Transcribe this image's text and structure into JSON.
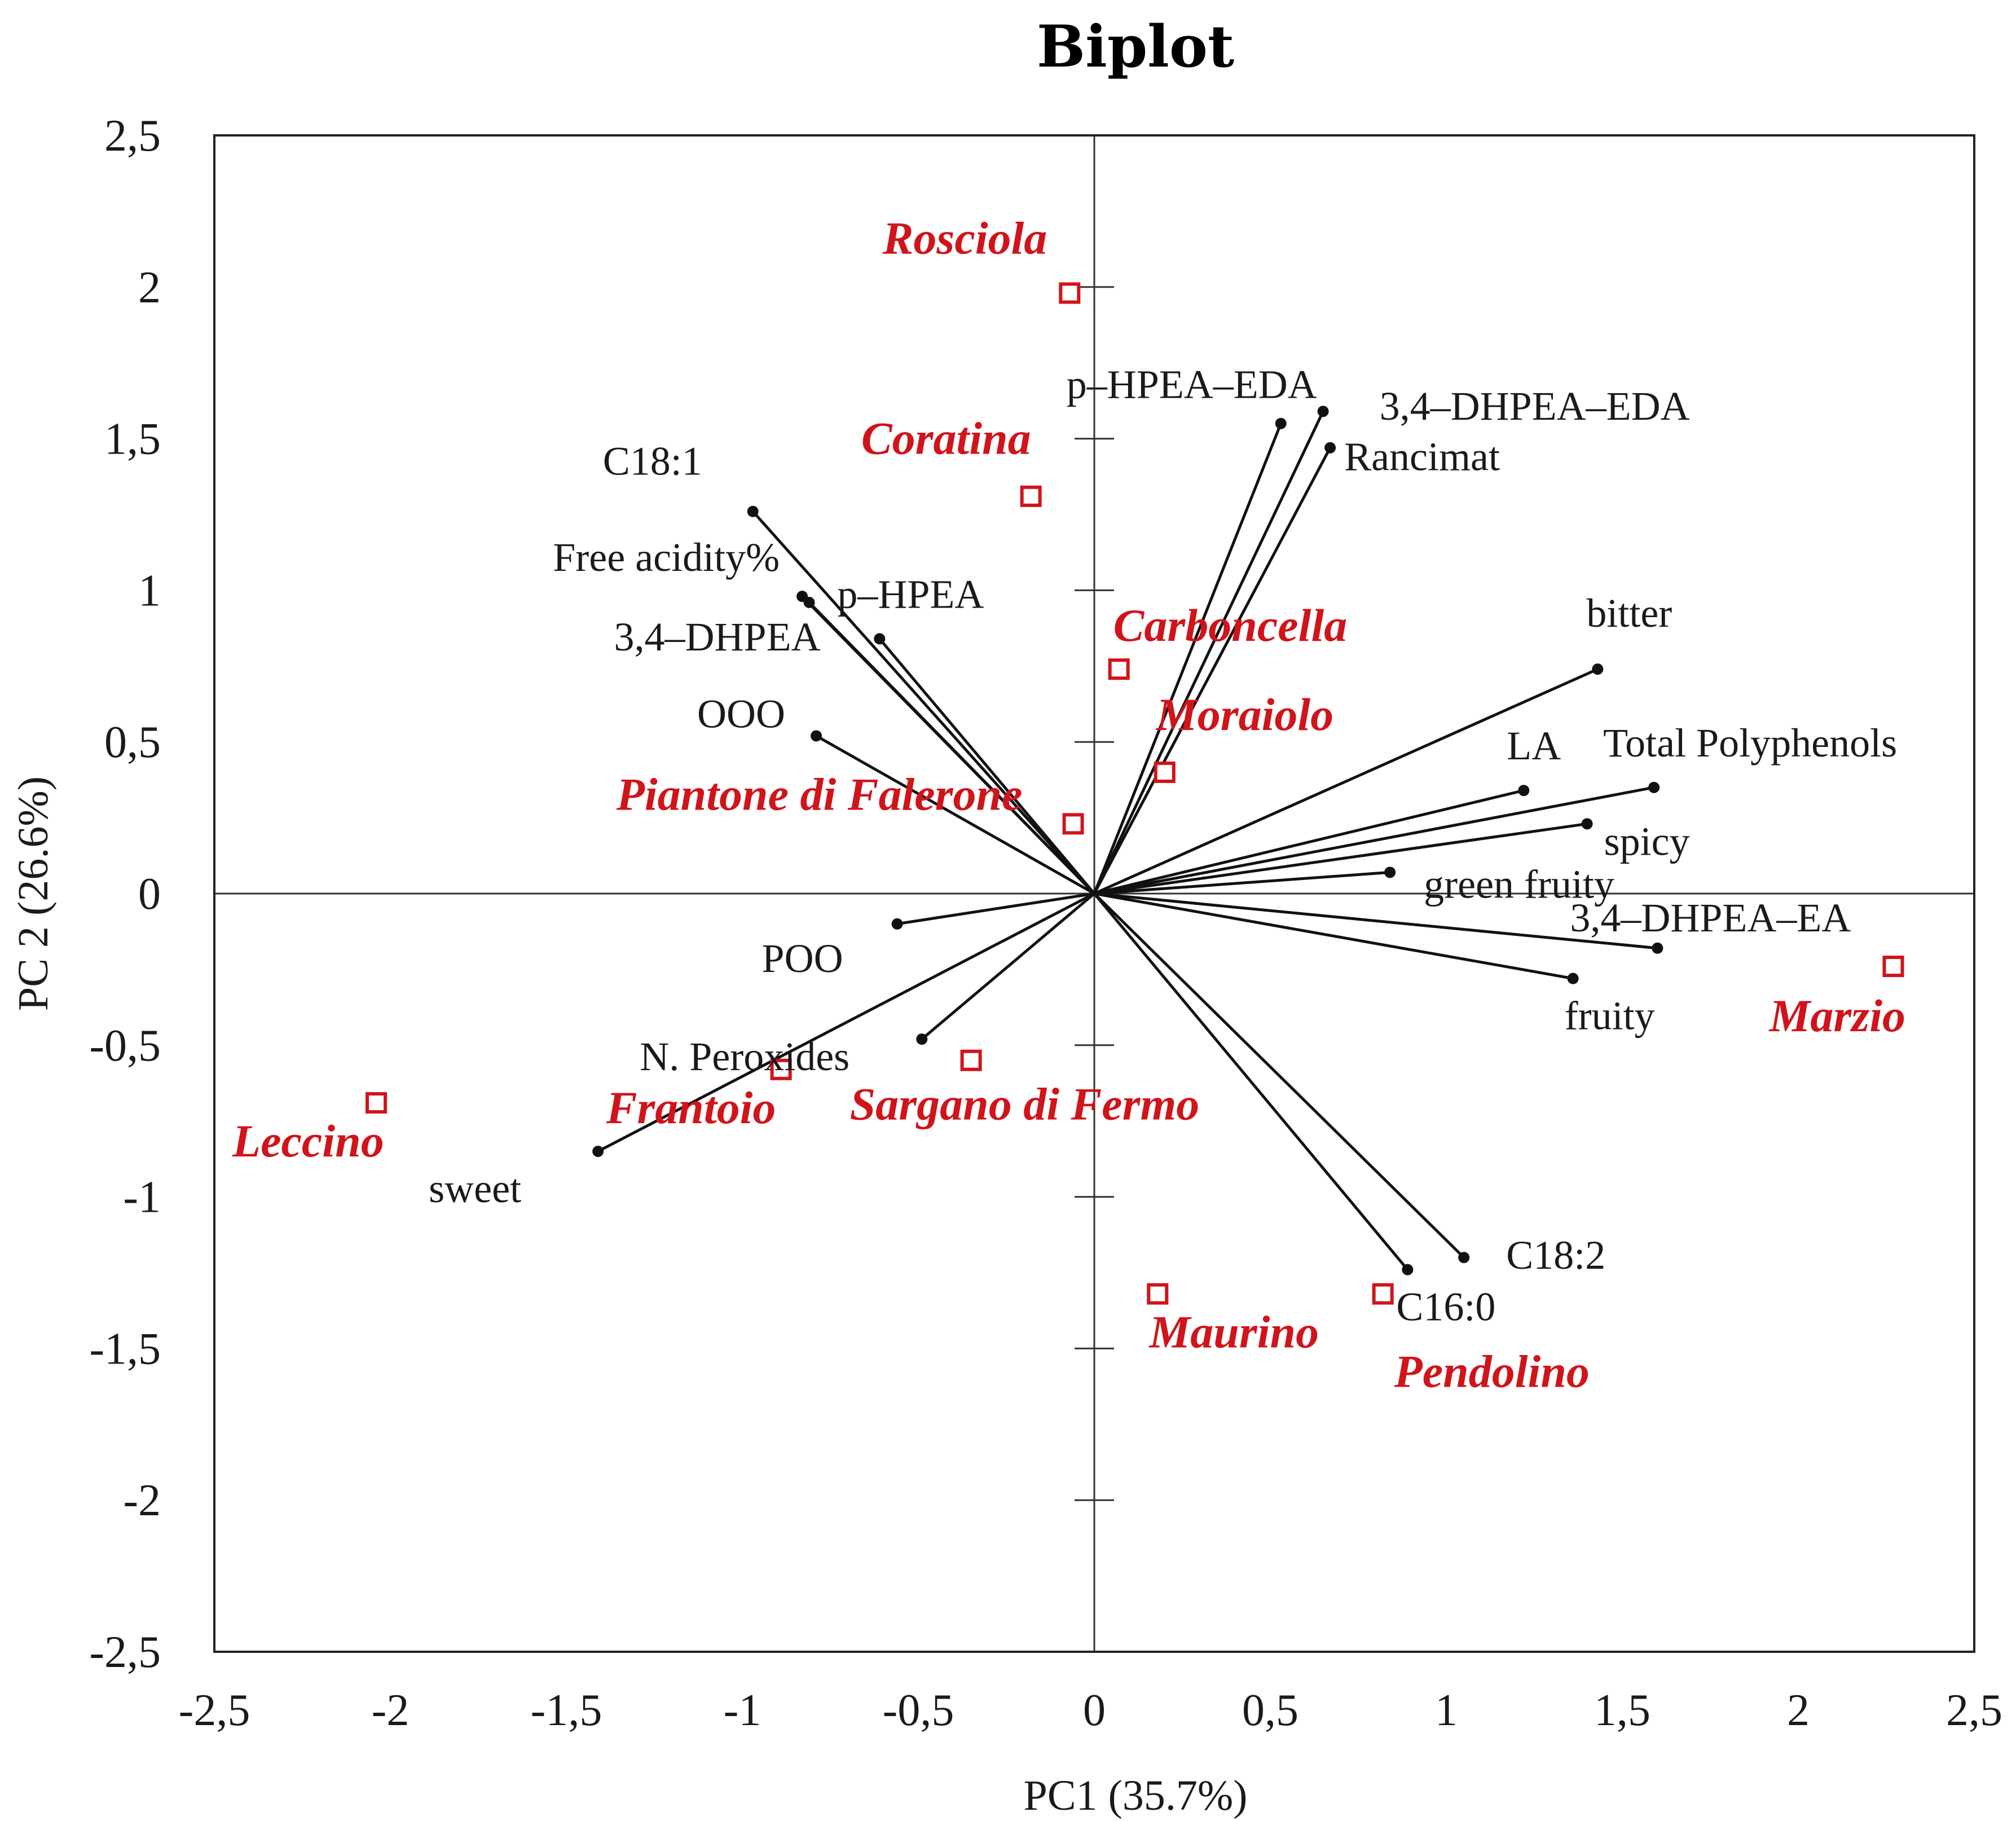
{
  "chart_data": {
    "type": "scatter",
    "subtype": "pca-biplot",
    "title": "Biplot",
    "xlabel": "PC1 (35.7%)",
    "ylabel": "PC 2 (26.6%)",
    "xlim": [
      -2.5,
      2.5
    ],
    "ylim": [
      -2.5,
      2.5
    ],
    "x_ticks": [
      {
        "value": -2.5,
        "label": "-2,5"
      },
      {
        "value": -2,
        "label": "-2"
      },
      {
        "value": -1.5,
        "label": "-1,5"
      },
      {
        "value": -1,
        "label": "-1"
      },
      {
        "value": -0.5,
        "label": "-0,5"
      },
      {
        "value": 0,
        "label": "0"
      },
      {
        "value": 0.5,
        "label": "0,5"
      },
      {
        "value": 1,
        "label": "1"
      },
      {
        "value": 1.5,
        "label": "1,5"
      },
      {
        "value": 2,
        "label": "2"
      },
      {
        "value": 2.5,
        "label": "2,5"
      }
    ],
    "y_ticks": [
      {
        "value": 2.5,
        "label": "2,5"
      },
      {
        "value": 2,
        "label": "2"
      },
      {
        "value": 1.5,
        "label": "1,5"
      },
      {
        "value": 1,
        "label": "1"
      },
      {
        "value": 0.5,
        "label": "0,5"
      },
      {
        "value": 0,
        "label": "0"
      },
      {
        "value": -0.5,
        "label": "-0,5"
      },
      {
        "value": -1,
        "label": "-1"
      },
      {
        "value": -1.5,
        "label": "-1,5"
      },
      {
        "value": -2,
        "label": "-2"
      },
      {
        "value": -2.5,
        "label": "-2,5"
      }
    ],
    "grid": false,
    "variables": [
      {
        "name": "C18:1",
        "x": -0.97,
        "y": 1.26
      },
      {
        "name": "Free acidity%",
        "x": -0.83,
        "y": 0.98
      },
      {
        "name": "3,4–DHPEA",
        "x": -0.81,
        "y": 0.96
      },
      {
        "name": "p–HPEA",
        "x": -0.61,
        "y": 0.84
      },
      {
        "name": "OOO",
        "x": -0.79,
        "y": 0.52
      },
      {
        "name": "POO",
        "x": -0.56,
        "y": -0.1
      },
      {
        "name": "N. Peroxides",
        "x": -0.49,
        "y": -0.48
      },
      {
        "name": "sweet",
        "x": -1.41,
        "y": -0.85
      },
      {
        "name": "p–HPEA–EDA",
        "x": 0.53,
        "y": 1.55
      },
      {
        "name": "3,4–DHPEA–EDA",
        "x": 0.65,
        "y": 1.59
      },
      {
        "name": "Rancimat",
        "x": 0.67,
        "y": 1.47
      },
      {
        "name": "bitter",
        "x": 1.43,
        "y": 0.74
      },
      {
        "name": "LA",
        "x": 1.22,
        "y": 0.34
      },
      {
        "name": "Total Polyphenols",
        "x": 1.59,
        "y": 0.35
      },
      {
        "name": "spicy",
        "x": 1.4,
        "y": 0.23
      },
      {
        "name": "green fruity",
        "x": 0.84,
        "y": 0.07
      },
      {
        "name": "3,4–DHPEA–EA",
        "x": 1.6,
        "y": -0.18
      },
      {
        "name": "fruity",
        "x": 1.36,
        "y": -0.28
      },
      {
        "name": "C18:2",
        "x": 1.05,
        "y": -1.2
      },
      {
        "name": "C16:0",
        "x": 0.89,
        "y": -1.24
      }
    ],
    "observations": [
      {
        "name": "Rosciola",
        "x": -0.07,
        "y": 1.98
      },
      {
        "name": "Coratina",
        "x": -0.18,
        "y": 1.31
      },
      {
        "name": "Carboncella",
        "x": 0.07,
        "y": 0.74
      },
      {
        "name": "Moraiolo",
        "x": 0.2,
        "y": 0.4
      },
      {
        "name": "Piantone di Falerone",
        "x": -0.06,
        "y": 0.23
      },
      {
        "name": "Marzio",
        "x": 2.27,
        "y": -0.24
      },
      {
        "name": "Sargano di Fermo",
        "x": -0.35,
        "y": -0.55
      },
      {
        "name": "Frantoio",
        "x": -0.89,
        "y": -0.58
      },
      {
        "name": "Leccino",
        "x": -2.04,
        "y": -0.69
      },
      {
        "name": "Maurino",
        "x": 0.18,
        "y": -1.32
      },
      {
        "name": "Pendolino",
        "x": 0.82,
        "y": -1.32
      }
    ],
    "colors": {
      "observations": "#d0141a",
      "vectors": "#111111",
      "text": "#1a1a1a"
    }
  }
}
